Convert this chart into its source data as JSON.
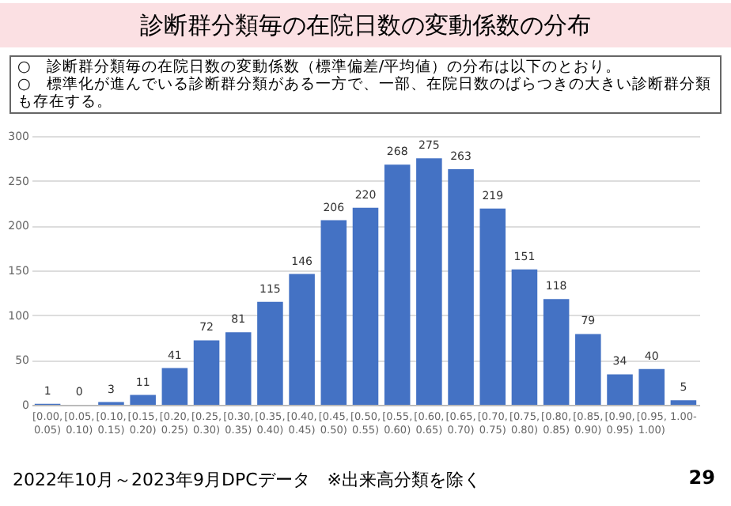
{
  "chart_data": {
    "type": "bar",
    "title": "診断群分類毎の在院日数の変動係数の分布",
    "subtitle": "○　診断群分類毎の在院日数の変動係数（標準偏差/平均値）の分布は以下のとおり。\n○　標準化が進んでいる診断群分類がある一方で、一部、在院日数のばらつきの大きい診断群分類も存在する。",
    "categories": [
      "[0.00, 0.05)",
      "[0.05, 0.10)",
      "[0.10, 0.15)",
      "[0.15, 0.20)",
      "[0.20, 0.25)",
      "[0.25, 0.30)",
      "[0.30, 0.35)",
      "[0.35, 0.40)",
      "[0.40, 0.45)",
      "[0.45, 0.50)",
      "[0.50, 0.55)",
      "[0.55, 0.60)",
      "[0.60, 0.65)",
      "[0.65, 0.70)",
      "[0.70, 0.75)",
      "[0.75, 0.80)",
      "[0.80, 0.85)",
      "[0.85, 0.90)",
      "[0.90, 0.95)",
      "[0.95, 1.00)",
      "1.00-"
    ],
    "values": [
      1,
      0,
      3,
      11,
      41,
      72,
      81,
      115,
      146,
      206,
      220,
      268,
      275,
      263,
      219,
      151,
      118,
      79,
      34,
      40,
      5
    ],
    "color": "#4472c4",
    "ylim": [
      0,
      300
    ],
    "yticks": [
      0,
      50,
      100,
      150,
      200,
      250,
      300
    ],
    "grid": "y",
    "data_labels": true,
    "annotations": [
      "2022年10月～2023年9月DPCデータ　※出来高分類を除く",
      "29"
    ]
  }
}
